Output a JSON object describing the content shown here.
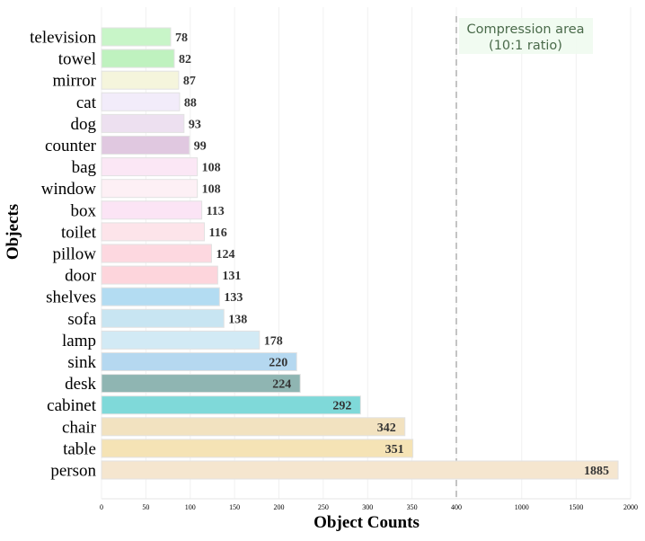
{
  "chart_data": {
    "type": "bar",
    "orientation": "horizontal",
    "categories": [
      "television",
      "towel",
      "mirror",
      "cat",
      "dog",
      "counter",
      "bag",
      "window",
      "box",
      "toilet",
      "pillow",
      "door",
      "shelves",
      "sofa",
      "lamp",
      "sink",
      "desk",
      "cabinet",
      "chair",
      "table",
      "person"
    ],
    "values": [
      78,
      82,
      87,
      88,
      93,
      99,
      108,
      108,
      113,
      116,
      124,
      131,
      133,
      138,
      178,
      220,
      224,
      292,
      342,
      351,
      1885
    ],
    "colors": [
      "#c8f5c8",
      "#bff2bf",
      "#f5f5dc",
      "#f2ecfa",
      "#ede0f0",
      "#e0c8e0",
      "#fbe7f5",
      "#fdf0f5",
      "#fbe4f5",
      "#fde4ea",
      "#fdd8e0",
      "#fdd5dc",
      "#b3dcf2",
      "#c8e5f2",
      "#d2eaf5",
      "#b5d8f0",
      "#8fb5b2",
      "#7fd9d9",
      "#f2e2c0",
      "#f5e3b5",
      "#f5e6cf"
    ],
    "xlabel": "Object Counts",
    "ylabel": "Objects",
    "xlim": [
      0,
      2000
    ],
    "x_ticks": [
      "0",
      "50",
      "100",
      "150",
      "200",
      "250",
      "300",
      "350",
      "400",
      "1000",
      "1500",
      "2000"
    ],
    "x_scale": "piecewise linear: 0-400 linear, 400-2000 compressed 10:1",
    "compression_break": 400,
    "annotation": {
      "line1": "Compression area",
      "line2": "(10:1 ratio)"
    },
    "grid": "vertical"
  }
}
